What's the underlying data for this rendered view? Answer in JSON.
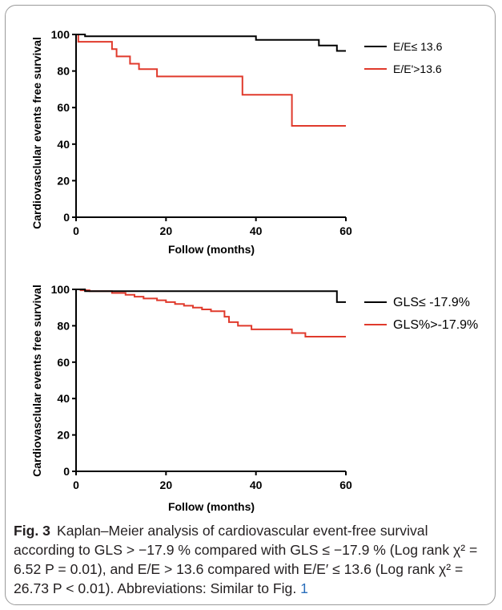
{
  "chart_data": [
    {
      "type": "line",
      "step": true,
      "ylabel": "Cardiovasclular events free survival",
      "xlabel": "Follow (months)",
      "xlim": [
        0,
        60
      ],
      "ylim": [
        0,
        100
      ],
      "xticks": [
        "0",
        "20",
        "40",
        "60"
      ],
      "yticks": [
        "0",
        "20",
        "40",
        "60",
        "80",
        "100"
      ],
      "legend_position": "top-right",
      "series": [
        {
          "name": "E/E≤ 13.6",
          "color": "#000000",
          "x": [
            0,
            2,
            2,
            40,
            40,
            54,
            54,
            58,
            58,
            60
          ],
          "y": [
            100,
            100,
            99,
            99,
            97,
            97,
            94,
            94,
            91,
            91
          ]
        },
        {
          "name": "E/E'>13.6",
          "color": "#e03a2c",
          "x": [
            0,
            0.5,
            0.5,
            8,
            8,
            9,
            9,
            12,
            12,
            14,
            14,
            18,
            18,
            37,
            37,
            48,
            48,
            60
          ],
          "y": [
            100,
            100,
            96,
            96,
            92,
            92,
            88,
            88,
            84,
            84,
            81,
            81,
            77,
            77,
            67,
            67,
            50,
            50
          ]
        }
      ]
    },
    {
      "type": "line",
      "step": true,
      "ylabel": "Cardiovasclular events free survival",
      "xlabel": "Follow (months)",
      "xlim": [
        0,
        60
      ],
      "ylim": [
        0,
        100
      ],
      "xticks": [
        "0",
        "20",
        "40",
        "60"
      ],
      "yticks": [
        "0",
        "20",
        "40",
        "60",
        "80",
        "100"
      ],
      "legend_position": "top-right",
      "series": [
        {
          "name": "GLS≤ -17.9%",
          "color": "#000000",
          "x": [
            0,
            2,
            2,
            58,
            58,
            60
          ],
          "y": [
            100,
            100,
            99,
            99,
            93,
            93
          ]
        },
        {
          "name": "GLS%>-17.9%",
          "color": "#e03a2c",
          "x": [
            0,
            1,
            1,
            3,
            3,
            8,
            8,
            11,
            11,
            13,
            13,
            15,
            15,
            18,
            18,
            20,
            20,
            22,
            22,
            24,
            24,
            26,
            26,
            28,
            28,
            30,
            30,
            33,
            33,
            34,
            34,
            36,
            36,
            39,
            39,
            48,
            48,
            51,
            51,
            60
          ],
          "y": [
            100,
            100,
            99.5,
            99.5,
            99,
            99,
            98,
            98,
            97,
            97,
            96,
            96,
            95,
            95,
            94,
            94,
            93,
            93,
            92,
            92,
            91,
            91,
            90,
            90,
            89,
            89,
            88,
            88,
            85,
            85,
            82,
            82,
            80,
            80,
            78,
            78,
            76,
            76,
            74,
            74
          ]
        }
      ]
    }
  ],
  "caption": {
    "label": "Fig. 3",
    "text": "Kaplan–Meier analysis of cardiovascular event-free survival according to GLS > −17.9 % compared with GLS ≤ −17.9 % (Log rank χ² = 6.52 P = 0.01), and E/E > 13.6 compared with E/E′ ≤ 13.6 (Log rank χ² = 26.73 P < 0.01). Abbreviations: Similar to Fig.",
    "ref": "1"
  },
  "colors": {
    "black_series": "#000000",
    "red_series": "#e03a2c",
    "ref_link": "#2a6ebb"
  }
}
